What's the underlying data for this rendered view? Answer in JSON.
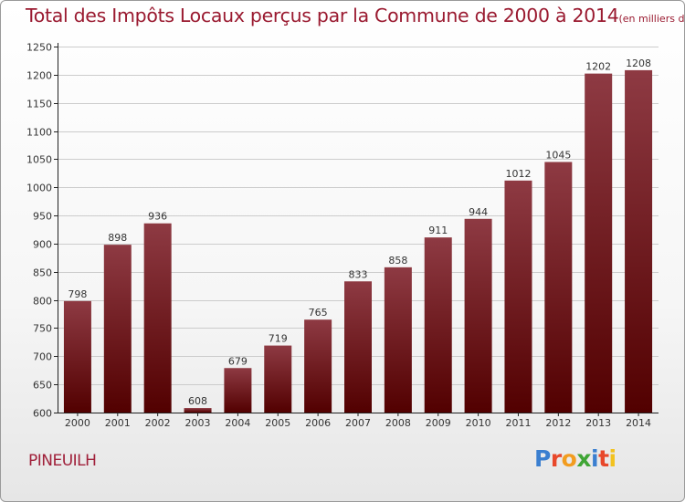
{
  "title": "Total des Impôts Locaux perçus par la Commune de 2000 à 2014",
  "subtitle": "(en milliers d'€)",
  "commune": "PINEUILH",
  "logo": {
    "text": "Proxiti",
    "letters": [
      {
        "ch": "P",
        "color": "#3b7fd0"
      },
      {
        "ch": "r",
        "color": "#e8482b"
      },
      {
        "ch": "o",
        "color": "#f29c1f"
      },
      {
        "ch": "x",
        "color": "#3fa535"
      },
      {
        "ch": "i",
        "color": "#3b7fd0"
      },
      {
        "ch": "t",
        "color": "#e8482b"
      },
      {
        "ch": "i",
        "color": "#f2c21f"
      }
    ]
  },
  "colors": {
    "bar_top": "#8e3a43",
    "bar_bottom": "#520000",
    "grid": "#cccccc",
    "axis": "#222222"
  },
  "chart_data": {
    "type": "bar",
    "title": "Total des Impôts Locaux perçus par la Commune de 2000 à 2014",
    "subtitle": "(en milliers d'€)",
    "categories": [
      "2000",
      "2001",
      "2002",
      "2003",
      "2004",
      "2005",
      "2006",
      "2007",
      "2008",
      "2009",
      "2010",
      "2011",
      "2012",
      "2013",
      "2014"
    ],
    "values": [
      798,
      898,
      936,
      608,
      679,
      719,
      765,
      833,
      858,
      911,
      944,
      1012,
      1045,
      1202,
      1208
    ],
    "ylim": [
      600,
      1250
    ],
    "yticks": [
      600,
      650,
      700,
      750,
      800,
      850,
      900,
      950,
      1000,
      1050,
      1100,
      1150,
      1200,
      1250
    ],
    "grid": true,
    "xlabel": "",
    "ylabel": ""
  }
}
